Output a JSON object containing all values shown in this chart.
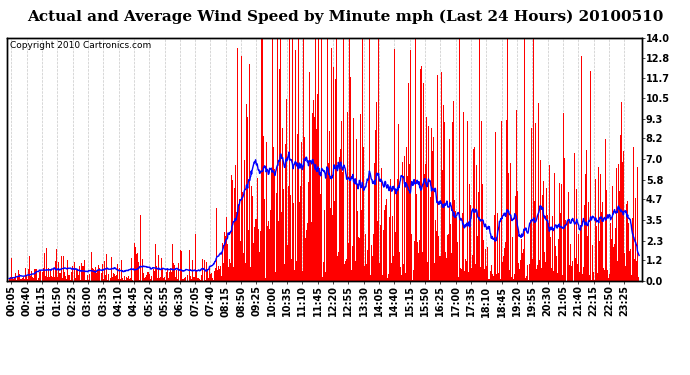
{
  "title": "Actual and Average Wind Speed by Minute mph (Last 24 Hours) 20100510",
  "copyright_text": "Copyright 2010 Cartronics.com",
  "yticks": [
    0.0,
    1.2,
    2.3,
    3.5,
    4.7,
    5.8,
    7.0,
    8.2,
    9.3,
    10.5,
    11.7,
    12.8,
    14.0
  ],
  "ylim": [
    0.0,
    14.0
  ],
  "bar_color": "#FF0000",
  "line_color": "#0000FF",
  "background_color": "#FFFFFF",
  "grid_color": "#C8C8C8",
  "title_fontsize": 11,
  "copyright_fontsize": 6.5,
  "tick_fontsize": 7,
  "n_minutes": 1440,
  "seed": 123
}
